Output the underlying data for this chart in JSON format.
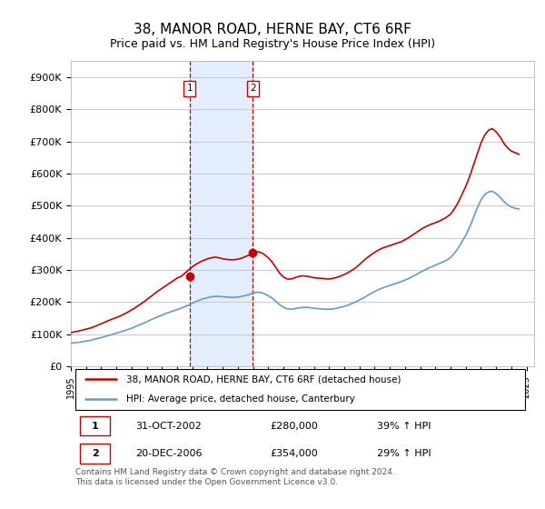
{
  "title": "38, MANOR ROAD, HERNE BAY, CT6 6RF",
  "subtitle": "Price paid vs. HM Land Registry's House Price Index (HPI)",
  "title_fontsize": 11,
  "subtitle_fontsize": 9,
  "ylabel_ticks": [
    "£0",
    "£100K",
    "£200K",
    "£300K",
    "£400K",
    "£500K",
    "£600K",
    "£700K",
    "£800K",
    "£900K"
  ],
  "ytick_values": [
    0,
    100000,
    200000,
    300000,
    400000,
    500000,
    600000,
    700000,
    800000,
    900000
  ],
  "ylim": [
    0,
    950000
  ],
  "xlim_start": 1995.0,
  "xlim_end": 2025.5,
  "legend_line1": "38, MANOR ROAD, HERNE BAY, CT6 6RF (detached house)",
  "legend_line2": "HPI: Average price, detached house, Canterbury",
  "line1_color": "#cc0000",
  "line2_color": "#6699cc",
  "purchase1_date": 2002.83,
  "purchase1_price": 280000,
  "purchase1_label": "1",
  "purchase2_date": 2006.97,
  "purchase2_price": 354000,
  "purchase2_label": "2",
  "table_row1": [
    "1",
    "31-OCT-2002",
    "£280,000",
    "39% ↑ HPI"
  ],
  "table_row2": [
    "2",
    "20-DEC-2006",
    "£354,000",
    "29% ↑ HPI"
  ],
  "footer": "Contains HM Land Registry data © Crown copyright and database right 2024.\nThis data is licensed under the Open Government Licence v3.0.",
  "shade_color": "#cce0ff",
  "hpi_red_line_years": [
    1995.0,
    1995.25,
    1995.5,
    1995.75,
    1996.0,
    1996.25,
    1996.5,
    1996.75,
    1997.0,
    1997.25,
    1997.5,
    1997.75,
    1998.0,
    1998.25,
    1998.5,
    1998.75,
    1999.0,
    1999.25,
    1999.5,
    1999.75,
    2000.0,
    2000.25,
    2000.5,
    2000.75,
    2001.0,
    2001.25,
    2001.5,
    2001.75,
    2002.0,
    2002.25,
    2002.5,
    2002.75,
    2003.0,
    2003.25,
    2003.5,
    2003.75,
    2004.0,
    2004.25,
    2004.5,
    2004.75,
    2005.0,
    2005.25,
    2005.5,
    2005.75,
    2006.0,
    2006.25,
    2006.5,
    2006.75,
    2007.0,
    2007.25,
    2007.5,
    2007.75,
    2008.0,
    2008.25,
    2008.5,
    2008.75,
    2009.0,
    2009.25,
    2009.5,
    2009.75,
    2010.0,
    2010.25,
    2010.5,
    2010.75,
    2011.0,
    2011.25,
    2011.5,
    2011.75,
    2012.0,
    2012.25,
    2012.5,
    2012.75,
    2013.0,
    2013.25,
    2013.5,
    2013.75,
    2014.0,
    2014.25,
    2014.5,
    2014.75,
    2015.0,
    2015.25,
    2015.5,
    2015.75,
    2016.0,
    2016.25,
    2016.5,
    2016.75,
    2017.0,
    2017.25,
    2017.5,
    2017.75,
    2018.0,
    2018.25,
    2018.5,
    2018.75,
    2019.0,
    2019.25,
    2019.5,
    2019.75,
    2020.0,
    2020.25,
    2020.5,
    2020.75,
    2021.0,
    2021.25,
    2021.5,
    2021.75,
    2022.0,
    2022.25,
    2022.5,
    2022.75,
    2023.0,
    2023.25,
    2023.5,
    2023.75,
    2024.0,
    2024.25,
    2024.5
  ],
  "hpi_red_values": [
    105000,
    108000,
    110000,
    113000,
    116000,
    119000,
    123000,
    128000,
    133000,
    138000,
    143000,
    148000,
    152000,
    157000,
    163000,
    169000,
    176000,
    183000,
    191000,
    199000,
    208000,
    217000,
    226000,
    235000,
    243000,
    251000,
    259000,
    267000,
    275000,
    280000,
    290000,
    300000,
    310000,
    318000,
    325000,
    330000,
    335000,
    338000,
    340000,
    338000,
    335000,
    333000,
    332000,
    332000,
    334000,
    337000,
    342000,
    347000,
    352000,
    357000,
    355000,
    348000,
    338000,
    325000,
    308000,
    290000,
    278000,
    272000,
    272000,
    276000,
    280000,
    282000,
    281000,
    279000,
    276000,
    275000,
    274000,
    273000,
    272000,
    274000,
    277000,
    281000,
    286000,
    292000,
    299000,
    307000,
    317000,
    328000,
    338000,
    347000,
    355000,
    362000,
    368000,
    372000,
    376000,
    380000,
    384000,
    388000,
    394000,
    401000,
    409000,
    417000,
    425000,
    432000,
    438000,
    443000,
    447000,
    452000,
    458000,
    465000,
    474000,
    490000,
    510000,
    535000,
    560000,
    590000,
    625000,
    660000,
    695000,
    720000,
    735000,
    740000,
    730000,
    715000,
    695000,
    680000,
    670000,
    665000,
    660000
  ],
  "hpi_blue_years": [
    1995.0,
    1995.25,
    1995.5,
    1995.75,
    1996.0,
    1996.25,
    1996.5,
    1996.75,
    1997.0,
    1997.25,
    1997.5,
    1997.75,
    1998.0,
    1998.25,
    1998.5,
    1998.75,
    1999.0,
    1999.25,
    1999.5,
    1999.75,
    2000.0,
    2000.25,
    2000.5,
    2000.75,
    2001.0,
    2001.25,
    2001.5,
    2001.75,
    2002.0,
    2002.25,
    2002.5,
    2002.75,
    2003.0,
    2003.25,
    2003.5,
    2003.75,
    2004.0,
    2004.25,
    2004.5,
    2004.75,
    2005.0,
    2005.25,
    2005.5,
    2005.75,
    2006.0,
    2006.25,
    2006.5,
    2006.75,
    2007.0,
    2007.25,
    2007.5,
    2007.75,
    2008.0,
    2008.25,
    2008.5,
    2008.75,
    2009.0,
    2009.25,
    2009.5,
    2009.75,
    2010.0,
    2010.25,
    2010.5,
    2010.75,
    2011.0,
    2011.25,
    2011.5,
    2011.75,
    2012.0,
    2012.25,
    2012.5,
    2012.75,
    2013.0,
    2013.25,
    2013.5,
    2013.75,
    2014.0,
    2014.25,
    2014.5,
    2014.75,
    2015.0,
    2015.25,
    2015.5,
    2015.75,
    2016.0,
    2016.25,
    2016.5,
    2016.75,
    2017.0,
    2017.25,
    2017.5,
    2017.75,
    2018.0,
    2018.25,
    2018.5,
    2018.75,
    2019.0,
    2019.25,
    2019.5,
    2019.75,
    2020.0,
    2020.25,
    2020.5,
    2020.75,
    2021.0,
    2021.25,
    2021.5,
    2021.75,
    2022.0,
    2022.25,
    2022.5,
    2022.75,
    2023.0,
    2023.25,
    2023.5,
    2023.75,
    2024.0,
    2024.25,
    2024.5
  ],
  "hpi_blue_values": [
    72000,
    74000,
    75000,
    77000,
    79000,
    81000,
    84000,
    87000,
    90000,
    93000,
    97000,
    100000,
    104000,
    107000,
    111000,
    115000,
    119000,
    124000,
    129000,
    134000,
    139000,
    145000,
    150000,
    155000,
    160000,
    165000,
    169000,
    173000,
    177000,
    181000,
    186000,
    191000,
    197000,
    202000,
    207000,
    211000,
    214000,
    217000,
    218000,
    218000,
    217000,
    216000,
    215000,
    215000,
    216000,
    218000,
    221000,
    224000,
    228000,
    231000,
    230000,
    226000,
    220000,
    213000,
    203000,
    192000,
    184000,
    179000,
    178000,
    180000,
    182000,
    184000,
    184000,
    183000,
    181000,
    180000,
    179000,
    178000,
    178000,
    179000,
    181000,
    184000,
    187000,
    191000,
    196000,
    201000,
    207000,
    213000,
    220000,
    227000,
    233000,
    239000,
    244000,
    248000,
    252000,
    256000,
    260000,
    264000,
    269000,
    274000,
    280000,
    286000,
    293000,
    299000,
    305000,
    310000,
    315000,
    320000,
    325000,
    331000,
    339000,
    352000,
    368000,
    388000,
    408000,
    433000,
    462000,
    492000,
    518000,
    535000,
    543000,
    545000,
    538000,
    527000,
    514000,
    503000,
    496000,
    492000,
    490000
  ]
}
